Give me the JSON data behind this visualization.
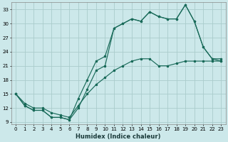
{
  "xlabel": "Humidex (Indice chaleur)",
  "bg_color": "#cce8ea",
  "grid_color": "#aacccc",
  "line_color": "#1a6b5a",
  "xlim": [
    -0.5,
    23.5
  ],
  "ylim": [
    8.5,
    34.5
  ],
  "xticks": [
    0,
    1,
    2,
    3,
    4,
    5,
    6,
    7,
    8,
    9,
    10,
    11,
    12,
    13,
    14,
    15,
    16,
    17,
    18,
    19,
    20,
    21,
    22,
    23
  ],
  "yticks": [
    9,
    12,
    15,
    18,
    21,
    24,
    27,
    30,
    33
  ],
  "curve1_x": [
    0,
    1,
    2,
    3,
    4,
    5,
    6,
    7,
    8,
    9,
    10,
    11,
    12,
    13,
    14,
    15,
    16,
    17,
    18,
    19,
    20,
    21,
    22,
    23
  ],
  "curve1_y": [
    15,
    12.5,
    11.5,
    11.5,
    10,
    10,
    9.5,
    12,
    16,
    20,
    21,
    29,
    30,
    31,
    30.5,
    32.5,
    31.5,
    31,
    31,
    34,
    30.5,
    25,
    22.5,
    22.5
  ],
  "curve2_x": [
    0,
    1,
    2,
    3,
    4,
    5,
    6,
    7,
    8,
    9,
    10,
    11,
    12,
    13,
    14,
    15,
    16,
    17,
    18,
    19,
    20,
    21,
    22,
    23
  ],
  "curve2_y": [
    15,
    13,
    12,
    12,
    11,
    10.5,
    10,
    12.5,
    15,
    17,
    18.5,
    20,
    21,
    22,
    22.5,
    22.5,
    21,
    21,
    21.5,
    22,
    22,
    22,
    22,
    22
  ],
  "curve3_x": [
    0,
    1,
    2,
    3,
    4,
    5,
    6,
    7,
    8,
    9,
    10,
    11,
    12,
    13,
    14,
    15,
    16,
    17,
    18,
    19,
    20,
    21,
    22,
    23
  ],
  "curve3_y": [
    15,
    12.5,
    11.5,
    11.5,
    10,
    10,
    9.5,
    14,
    18,
    22,
    23,
    29,
    30,
    31,
    30.5,
    32.5,
    31.5,
    31,
    31,
    34,
    30.5,
    25,
    22.5,
    22
  ]
}
